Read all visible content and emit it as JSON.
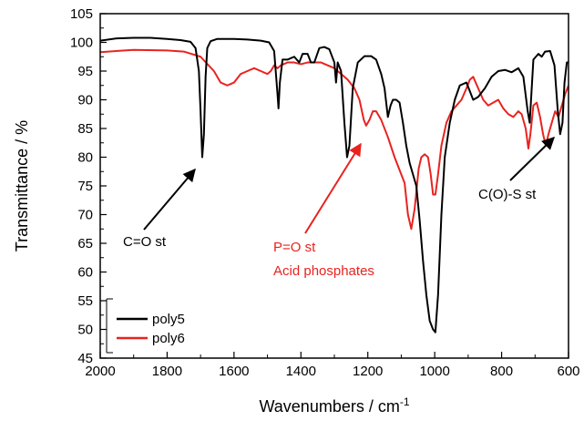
{
  "chart_data": {
    "type": "line",
    "xlabel": "Wavenumbers / cm",
    "xlabel_superscript": "-1",
    "ylabel": "Transmittance / %",
    "xlim": [
      2000,
      600
    ],
    "ylim": [
      45,
      105
    ],
    "x_reversed": true,
    "x_ticks": [
      2000,
      1800,
      1600,
      1400,
      1200,
      1000,
      800,
      600
    ],
    "y_ticks": [
      45,
      50,
      55,
      60,
      65,
      70,
      75,
      80,
      85,
      90,
      95,
      100,
      105
    ],
    "grid": false,
    "legend_position": "bottom-left",
    "series": [
      {
        "name": "poly5",
        "color": "#000000",
        "points": [
          [
            2000,
            100.3
          ],
          [
            1950,
            100.7
          ],
          [
            1900,
            100.8
          ],
          [
            1850,
            100.8
          ],
          [
            1800,
            100.6
          ],
          [
            1760,
            100.4
          ],
          [
            1730,
            100.1
          ],
          [
            1715,
            99.0
          ],
          [
            1705,
            95.0
          ],
          [
            1700,
            88.0
          ],
          [
            1695,
            80.0
          ],
          [
            1690,
            84.0
          ],
          [
            1685,
            94.0
          ],
          [
            1680,
            99.0
          ],
          [
            1670,
            100.2
          ],
          [
            1650,
            100.6
          ],
          [
            1600,
            100.6
          ],
          [
            1560,
            100.5
          ],
          [
            1520,
            100.3
          ],
          [
            1495,
            100.0
          ],
          [
            1480,
            98.5
          ],
          [
            1470,
            91.0
          ],
          [
            1467,
            88.5
          ],
          [
            1463,
            93.0
          ],
          [
            1455,
            97.0
          ],
          [
            1440,
            97.0
          ],
          [
            1420,
            97.5
          ],
          [
            1405,
            96.5
          ],
          [
            1395,
            98.0
          ],
          [
            1380,
            98.0
          ],
          [
            1370,
            96.5
          ],
          [
            1360,
            96.5
          ],
          [
            1345,
            99.0
          ],
          [
            1330,
            99.2
          ],
          [
            1315,
            98.8
          ],
          [
            1300,
            96.5
          ],
          [
            1295,
            93.0
          ],
          [
            1290,
            96.5
          ],
          [
            1280,
            95.0
          ],
          [
            1270,
            86.0
          ],
          [
            1262,
            80.0
          ],
          [
            1255,
            82.0
          ],
          [
            1245,
            92.0
          ],
          [
            1230,
            96.5
          ],
          [
            1210,
            97.6
          ],
          [
            1190,
            97.6
          ],
          [
            1175,
            97.0
          ],
          [
            1160,
            94.5
          ],
          [
            1150,
            92.0
          ],
          [
            1140,
            87.0
          ],
          [
            1132,
            89.0
          ],
          [
            1125,
            90.0
          ],
          [
            1115,
            90.0
          ],
          [
            1105,
            89.5
          ],
          [
            1095,
            86.0
          ],
          [
            1085,
            82.0
          ],
          [
            1075,
            79.0
          ],
          [
            1065,
            77.0
          ],
          [
            1055,
            75.0
          ],
          [
            1045,
            69.0
          ],
          [
            1035,
            62.0
          ],
          [
            1025,
            56.0
          ],
          [
            1015,
            51.5
          ],
          [
            1005,
            50.0
          ],
          [
            998,
            49.5
          ],
          [
            990,
            56.0
          ],
          [
            980,
            70.0
          ],
          [
            970,
            80.0
          ],
          [
            955,
            86.0
          ],
          [
            940,
            90.0
          ],
          [
            925,
            92.5
          ],
          [
            905,
            93.0
          ],
          [
            885,
            90.0
          ],
          [
            870,
            90.5
          ],
          [
            850,
            92.0
          ],
          [
            830,
            94.0
          ],
          [
            810,
            95.0
          ],
          [
            790,
            95.2
          ],
          [
            770,
            94.8
          ],
          [
            750,
            95.5
          ],
          [
            735,
            94.0
          ],
          [
            722,
            88.0
          ],
          [
            716,
            86.0
          ],
          [
            712,
            90.0
          ],
          [
            705,
            97.0
          ],
          [
            690,
            98.0
          ],
          [
            680,
            97.5
          ],
          [
            670,
            98.4
          ],
          [
            655,
            98.5
          ],
          [
            642,
            96.0
          ],
          [
            632,
            88.0
          ],
          [
            625,
            84.0
          ],
          [
            618,
            86.0
          ],
          [
            612,
            93.0
          ],
          [
            605,
            96.5
          ],
          [
            600,
            96.5
          ]
        ]
      },
      {
        "name": "poly6",
        "color": "#e8231f",
        "points": [
          [
            2000,
            98.3
          ],
          [
            1900,
            98.7
          ],
          [
            1800,
            98.6
          ],
          [
            1750,
            98.4
          ],
          [
            1700,
            97.5
          ],
          [
            1660,
            95.0
          ],
          [
            1640,
            93.0
          ],
          [
            1620,
            92.5
          ],
          [
            1600,
            93.0
          ],
          [
            1580,
            94.5
          ],
          [
            1560,
            95.0
          ],
          [
            1540,
            95.5
          ],
          [
            1520,
            95.0
          ],
          [
            1500,
            94.5
          ],
          [
            1490,
            95.0
          ],
          [
            1480,
            96.0
          ],
          [
            1470,
            95.5
          ],
          [
            1460,
            96.0
          ],
          [
            1440,
            96.5
          ],
          [
            1420,
            96.5
          ],
          [
            1400,
            96.2
          ],
          [
            1380,
            96.5
          ],
          [
            1360,
            96.5
          ],
          [
            1340,
            96.5
          ],
          [
            1320,
            96.0
          ],
          [
            1300,
            95.5
          ],
          [
            1280,
            94.5
          ],
          [
            1260,
            93.5
          ],
          [
            1240,
            92.0
          ],
          [
            1225,
            90.0
          ],
          [
            1212,
            86.5
          ],
          [
            1205,
            85.5
          ],
          [
            1195,
            86.5
          ],
          [
            1185,
            88.0
          ],
          [
            1175,
            88.0
          ],
          [
            1160,
            86.5
          ],
          [
            1140,
            83.5
          ],
          [
            1120,
            80.0
          ],
          [
            1100,
            77.0
          ],
          [
            1090,
            75.5
          ],
          [
            1080,
            70.0
          ],
          [
            1070,
            67.5
          ],
          [
            1060,
            71.0
          ],
          [
            1048,
            78.0
          ],
          [
            1040,
            80.0
          ],
          [
            1030,
            80.5
          ],
          [
            1020,
            80.0
          ],
          [
            1012,
            77.0
          ],
          [
            1005,
            73.5
          ],
          [
            998,
            73.5
          ],
          [
            990,
            77.0
          ],
          [
            980,
            82.0
          ],
          [
            965,
            86.0
          ],
          [
            950,
            88.0
          ],
          [
            935,
            89.0
          ],
          [
            920,
            90.0
          ],
          [
            905,
            92.0
          ],
          [
            895,
            93.5
          ],
          [
            885,
            94.0
          ],
          [
            870,
            92.0
          ],
          [
            855,
            90.0
          ],
          [
            840,
            89.0
          ],
          [
            825,
            89.5
          ],
          [
            810,
            90.0
          ],
          [
            795,
            88.5
          ],
          [
            780,
            87.5
          ],
          [
            765,
            87.0
          ],
          [
            750,
            88.0
          ],
          [
            740,
            87.5
          ],
          [
            728,
            85.0
          ],
          [
            720,
            81.5
          ],
          [
            714,
            84.0
          ],
          [
            705,
            89.0
          ],
          [
            695,
            89.5
          ],
          [
            685,
            87.0
          ],
          [
            676,
            84.0
          ],
          [
            668,
            82.0
          ],
          [
            660,
            84.0
          ],
          [
            650,
            86.0
          ],
          [
            640,
            88.0
          ],
          [
            630,
            87.0
          ],
          [
            620,
            89.0
          ],
          [
            610,
            91.0
          ],
          [
            600,
            92.5
          ]
        ]
      }
    ],
    "annotations": [
      {
        "text": "C=O st",
        "color": "#000000"
      },
      {
        "text": "P=O st",
        "color": "#e8231f"
      },
      {
        "text": "Acid phosphates",
        "color": "#e8231f"
      },
      {
        "text": "C(O)-S st",
        "color": "#000000"
      }
    ]
  }
}
